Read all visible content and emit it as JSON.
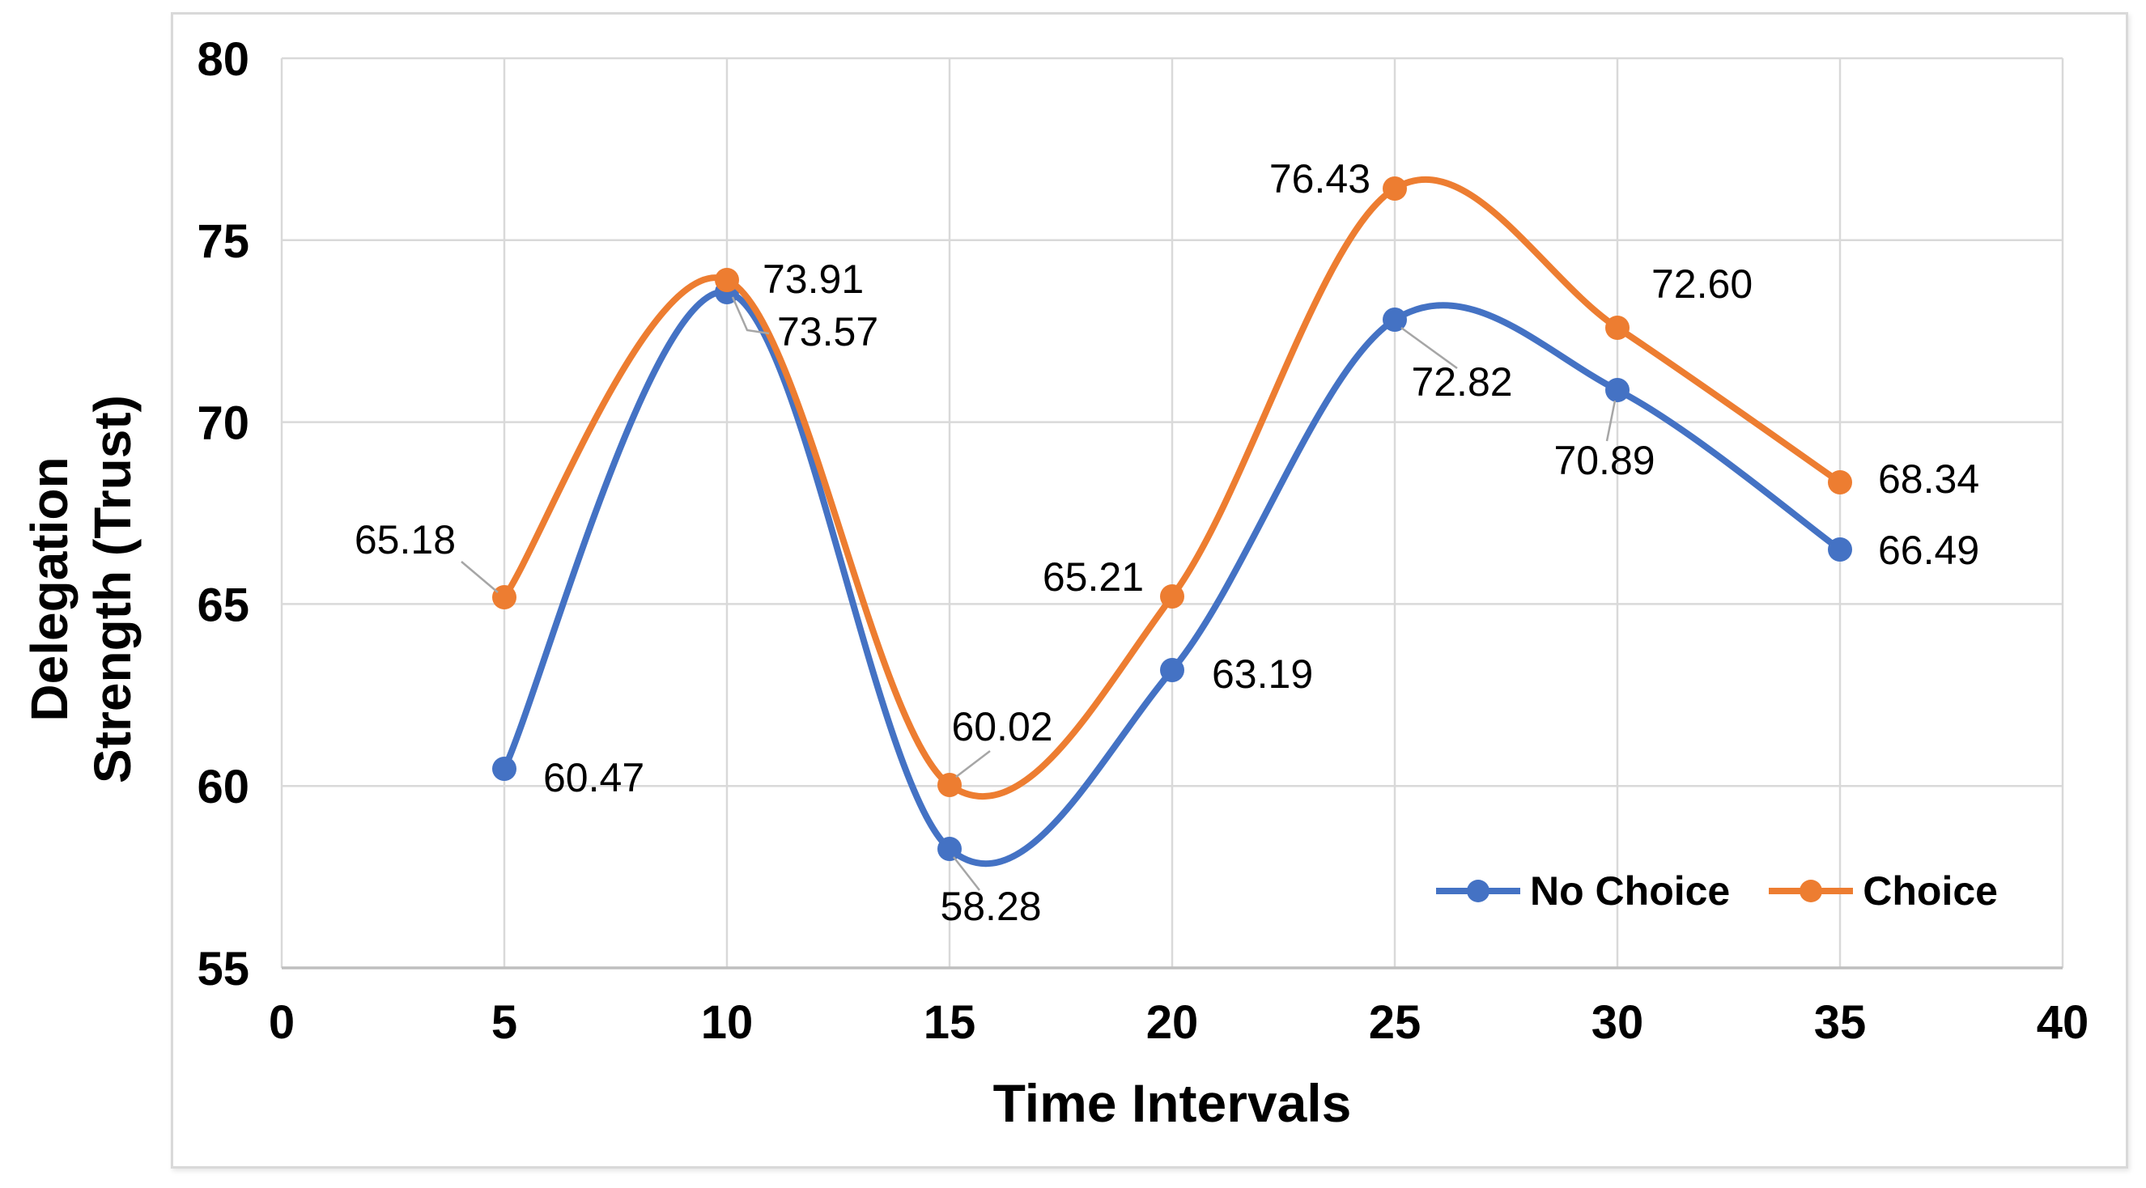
{
  "chart_data": {
    "type": "line",
    "x": [
      5,
      10,
      15,
      20,
      25,
      30,
      35
    ],
    "series": [
      {
        "name": "No Choice",
        "color": "#4472C4",
        "values": [
          60.47,
          73.57,
          58.28,
          63.19,
          72.82,
          70.89,
          66.49
        ],
        "labels": [
          "60.47",
          "73.57",
          "58.28",
          "63.19",
          "72.82",
          "70.89",
          "66.49"
        ]
      },
      {
        "name": "Choice",
        "color": "#ED7D31",
        "values": [
          65.18,
          73.91,
          60.02,
          65.21,
          76.43,
          72.6,
          68.34
        ],
        "labels": [
          "65.18",
          "73.91",
          "60.02",
          "65.21",
          "76.43",
          "72.60",
          "68.34"
        ]
      }
    ],
    "title": "",
    "xlabel": "Time Intervals",
    "ylabel": "Delegation Strength (Trust)",
    "xlim": [
      0,
      40
    ],
    "ylim": [
      55,
      80
    ],
    "x_ticks": [
      "0",
      "5",
      "10",
      "15",
      "20",
      "25",
      "30",
      "35",
      "40"
    ],
    "y_ticks": [
      "55",
      "60",
      "65",
      "70",
      "75",
      "80"
    ],
    "grid": true,
    "line_style": "smooth",
    "marker": "circle",
    "legend_position": "inside-bottom-right"
  },
  "axes": {
    "x_title": "Time Intervals",
    "y_title_lines": [
      "Delegation",
      "Strength (Trust)"
    ]
  },
  "legend": {
    "items": [
      {
        "label": "No Choice",
        "color": "#4472C4"
      },
      {
        "label": "Choice",
        "color": "#ED7D31"
      }
    ]
  },
  "style": {
    "grid_color": "#D9D9D9",
    "axis_color": "#BFBFBF",
    "leader_color": "#A6A6A6",
    "text_color": "#000000",
    "frame_border": "#D9D9D9",
    "background": "#FFFFFF"
  }
}
